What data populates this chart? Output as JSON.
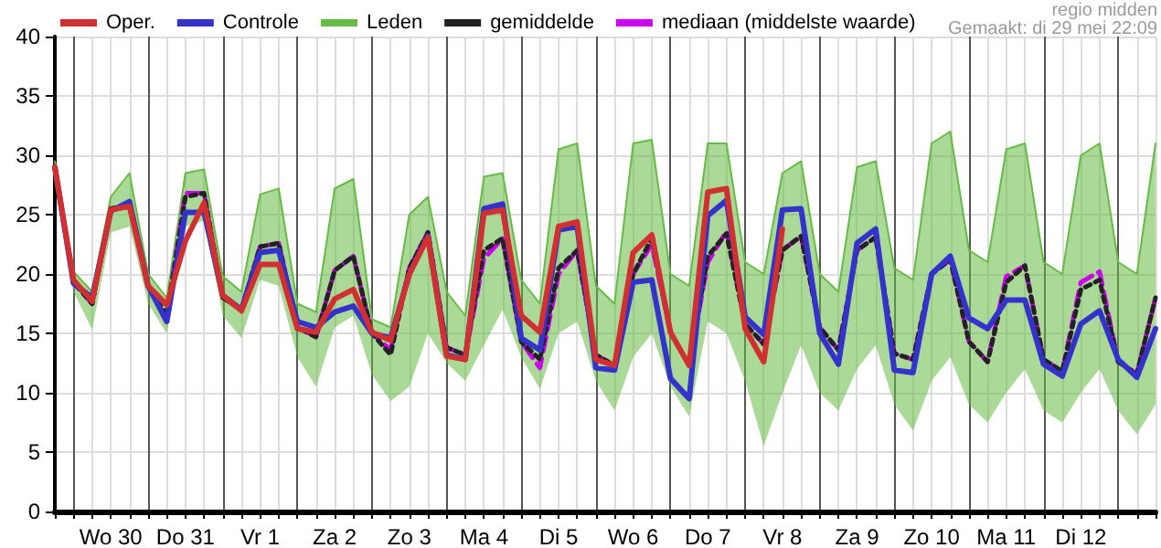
{
  "chart_data": {
    "type": "line",
    "categories": [
      null,
      null,
      null,
      "Wo 30",
      null,
      null,
      null,
      "Do 31",
      null,
      null,
      null,
      "Vr 1",
      null,
      null,
      null,
      "Za 2",
      null,
      null,
      null,
      "Zo 3",
      null,
      null,
      null,
      "Ma 4",
      null,
      null,
      null,
      "Di 5",
      null,
      null,
      null,
      "Wo 6",
      null,
      null,
      null,
      "Do 7",
      null,
      null,
      null,
      "Vr 8",
      null,
      null,
      null,
      "Za 9",
      null,
      null,
      null,
      "Zo 10",
      null,
      null,
      null,
      "Ma 11",
      null,
      null,
      null,
      "Di 12",
      null,
      null,
      null,
      null
    ],
    "ylim": [
      0,
      40
    ],
    "yticks": [
      0,
      5,
      10,
      15,
      20,
      25,
      30,
      35,
      40
    ],
    "grid": true,
    "legend": "top left",
    "annotations": [
      "regio midden",
      "Gemaakt: di 29 mei 22:09"
    ],
    "series": [
      {
        "name": "Oper.",
        "color": "#d03030",
        "line_style": "solid",
        "values": [
          29,
          19.5,
          17.7,
          25.4,
          25.7,
          19,
          17.4,
          22.8,
          26,
          18.2,
          16.9,
          20.8,
          20.8,
          15.4,
          15.1,
          17.9,
          18.7,
          15.1,
          14.4,
          20,
          23.1,
          13.1,
          12.8,
          25.1,
          25.4,
          16.5,
          15.1,
          24,
          24.4,
          12.8,
          12.3,
          21.8,
          23.3,
          15.1,
          12.3,
          26.9,
          27.2,
          15.4,
          12.6,
          23.8,
          null,
          null,
          null,
          null,
          null,
          null,
          null,
          null,
          null,
          null,
          null,
          null,
          null,
          null,
          null,
          null,
          null,
          null,
          null,
          null
        ]
      },
      {
        "name": "Controle",
        "color": "#3333cc",
        "line_style": "solid",
        "values": [
          29,
          19.2,
          18,
          25.3,
          26.1,
          19,
          16,
          25.2,
          25.2,
          18.2,
          17,
          21.8,
          22,
          16,
          15.5,
          16.8,
          17.3,
          15,
          14.6,
          20,
          23.2,
          13.2,
          12.8,
          25.5,
          25.9,
          14.6,
          13.6,
          23.7,
          24,
          12.1,
          11.9,
          19.3,
          19.5,
          11.2,
          9.5,
          24.9,
          26.2,
          16.4,
          14.9,
          25.4,
          25.5,
          15,
          12.4,
          22.6,
          23.8,
          11.9,
          11.7,
          20,
          21.5,
          16.3,
          15.4,
          17.8,
          17.8,
          12.4,
          11.4,
          15.8,
          16.9,
          12.8,
          11.3,
          15.4
        ]
      },
      {
        "name": "Leden",
        "color": "#66bb44",
        "line_style": "solid",
        "values": [
          29.5,
          20.2,
          18.5,
          26.5,
          28.5,
          20,
          18,
          28.5,
          28.8,
          19.8,
          18.5,
          26.7,
          27.2,
          17.5,
          16.8,
          27.2,
          28,
          16.2,
          15.5,
          25,
          26.5,
          18.5,
          16.5,
          28.2,
          28.5,
          19.5,
          17.5,
          30.5,
          31,
          19,
          17.5,
          31,
          31.3,
          20,
          19,
          31,
          31,
          21,
          20,
          28.5,
          29.5,
          20,
          18.5,
          29,
          29.5,
          20.5,
          19.5,
          31,
          32,
          22,
          21,
          30.5,
          31,
          21,
          20,
          30,
          31,
          21,
          20,
          31
        ],
        "lower": [
          27.5,
          18.5,
          15.3,
          23.5,
          24,
          17.5,
          15,
          24,
          24.5,
          16.5,
          14.6,
          19.5,
          19,
          13,
          10.5,
          15.5,
          16.5,
          11.5,
          9.3,
          10.5,
          15,
          12.5,
          11,
          14,
          17,
          13,
          10.3,
          15,
          16,
          11,
          8.5,
          13,
          15,
          10.5,
          8,
          16,
          15,
          11,
          5.5,
          10,
          14,
          10,
          8.5,
          12,
          14,
          9,
          6.8,
          11,
          13,
          9,
          7.5,
          10,
          12,
          8.5,
          7.5,
          10,
          12,
          8.5,
          6.5,
          9
        ],
        "upper": [
          29.5,
          20.2,
          18.5,
          26.5,
          28.5,
          20,
          18,
          28.5,
          28.8,
          19.8,
          18.5,
          26.7,
          27.2,
          17.5,
          16.8,
          27.2,
          28,
          16.2,
          15.5,
          25,
          26.5,
          18.5,
          16.5,
          28.2,
          28.5,
          19.5,
          17.5,
          30.5,
          31,
          19,
          17.5,
          31,
          31.3,
          20,
          19,
          31,
          31,
          21,
          20,
          28.5,
          29.5,
          20,
          18.5,
          29,
          29.5,
          20.5,
          19.5,
          31,
          32,
          22,
          21,
          30.5,
          31,
          21,
          20,
          30,
          31,
          21,
          20,
          31
        ]
      },
      {
        "name": "gemiddelde",
        "color": "#222222",
        "line_style": "dotted",
        "values": [
          29,
          19.3,
          17.5,
          25.5,
          25.8,
          19,
          16.5,
          26.5,
          26.8,
          18,
          17,
          22.3,
          22.6,
          15.5,
          14.7,
          20.3,
          21.5,
          15,
          13.2,
          20.5,
          23.5,
          13.8,
          13.2,
          22,
          23,
          14.3,
          12.8,
          20.5,
          22,
          13.2,
          12.3,
          20,
          23,
          15.1,
          12.3,
          21.5,
          23.4,
          15.8,
          14.1,
          22,
          23.2,
          15.5,
          13.6,
          22,
          23.1,
          13.3,
          12.8,
          20,
          21.2,
          14.3,
          12.6,
          19.3,
          20.7,
          12.8,
          11.8,
          18.7,
          19.5,
          12.6,
          11.6,
          18
        ]
      },
      {
        "name": "mediaan (middelste waarde)",
        "color": "#cc00ee",
        "line_style": "dashed",
        "values": [
          29,
          19.3,
          17.5,
          25.5,
          25.8,
          19,
          16.5,
          26.8,
          26.8,
          18,
          17,
          22.3,
          22.6,
          15.5,
          14.7,
          20.3,
          21.5,
          15,
          13.6,
          20.5,
          23.5,
          13.8,
          13.2,
          21.3,
          23,
          14.3,
          12.1,
          20,
          22,
          13.2,
          12.3,
          20,
          22.5,
          15.1,
          12.3,
          21,
          23.6,
          15.8,
          14.1,
          22,
          23.2,
          15.5,
          13.6,
          22,
          23.1,
          13.3,
          12.8,
          20,
          21.2,
          14.3,
          12.6,
          19.8,
          20.7,
          12.8,
          11.8,
          19.3,
          20.2,
          12.6,
          11.6,
          18
        ]
      }
    ]
  }
}
